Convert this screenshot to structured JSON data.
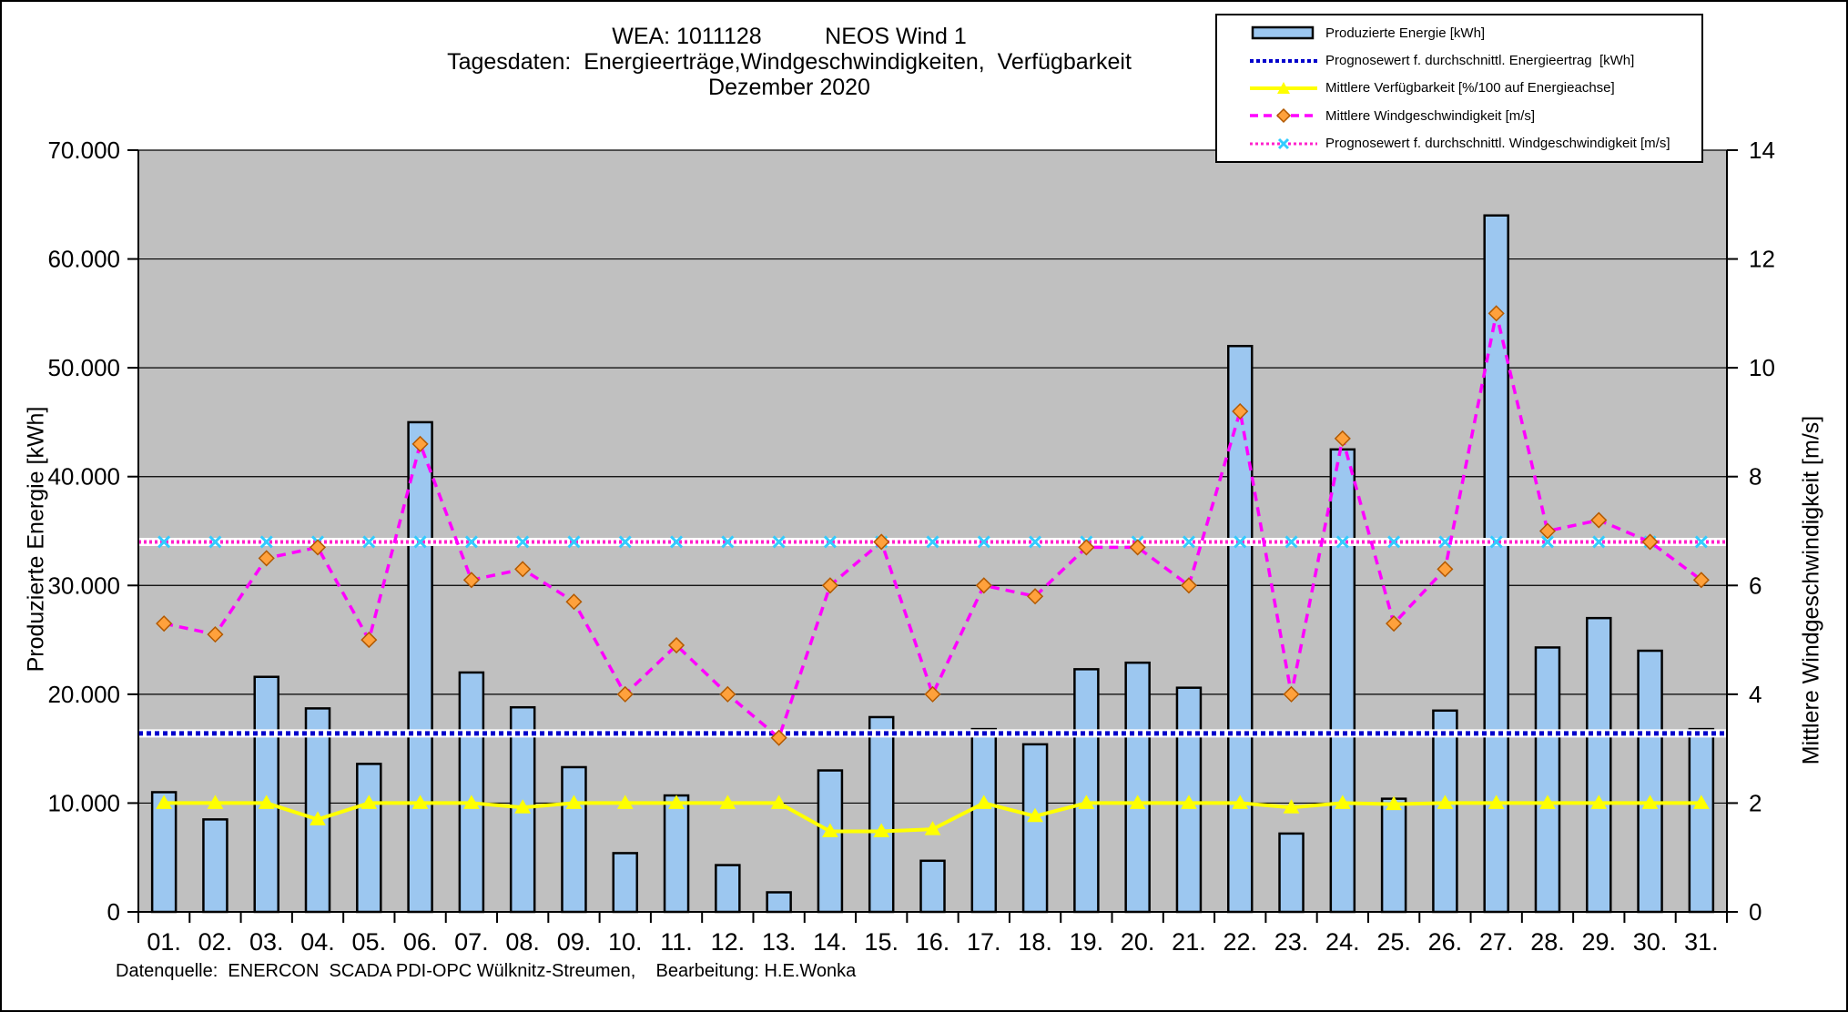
{
  "title": {
    "line1": "WEA: 1011128          NEOS Wind 1",
    "line2": "Tagesdaten:  Energieerträge,Windgeschwindigkeiten,  Verfügbarkeit",
    "line3": "Dezember 2020"
  },
  "footer": "Datenquelle:  ENERCON  SCADA PDI-OPC Wülknitz-Streumen,    Bearbeitung: H.E.Wonka",
  "legend": {
    "items": [
      {
        "label": "Produzierte Energie [kWh]",
        "type": "bar"
      },
      {
        "label": "Prognosewert f. durchschnittl. Energieertrag  [kWh]",
        "type": "dotted-blue"
      },
      {
        "label": "Mittlere Verfügbarkeit [%/100 auf Energieachse]",
        "type": "solid-yellow-triangle"
      },
      {
        "label": "Mittlere Windgeschwindigkeit [m/s]",
        "type": "dashed-magenta-diamond"
      },
      {
        "label": "Prognosewert f. durchschnittl. Windgeschwindigkeit [m/s]",
        "type": "dotted-magenta-x"
      }
    ]
  },
  "chart_data": {
    "type": "bar",
    "x_labels": [
      "01.",
      "02.",
      "03.",
      "04.",
      "05.",
      "06.",
      "07.",
      "08.",
      "09.",
      "10.",
      "11.",
      "12.",
      "13.",
      "14.",
      "15.",
      "16.",
      "17.",
      "18.",
      "19.",
      "20.",
      "21.",
      "22.",
      "23.",
      "24.",
      "25.",
      "26.",
      "27.",
      "28.",
      "29.",
      "30.",
      "31."
    ],
    "series": [
      {
        "name": "Produzierte Energie [kWh]",
        "type": "bar",
        "axis": "energy",
        "values": [
          11000,
          8500,
          21600,
          18700,
          13600,
          45000,
          22000,
          18800,
          13300,
          5400,
          10700,
          4300,
          1800,
          13000,
          17900,
          4700,
          16800,
          15400,
          22300,
          22900,
          20600,
          52000,
          7200,
          42500,
          10400,
          18500,
          64000,
          24300,
          27000,
          24000,
          16800
        ]
      },
      {
        "name": "Prognosewert f. durchschnittl. Energieertrag [kWh]",
        "type": "flatline",
        "axis": "energy",
        "value": 16400
      },
      {
        "name": "Mittlere Verfügbarkeit [%/100 auf Energieachse]",
        "type": "line",
        "axis": "energy",
        "scale_note": "%/100 plotted as value*10000 on energy axis",
        "values_pct": [
          1.0,
          1.0,
          1.0,
          0.85,
          1.0,
          1.0,
          1.0,
          0.96,
          1.0,
          1.0,
          1.0,
          1.0,
          1.0,
          0.74,
          0.74,
          0.76,
          1.0,
          0.88,
          1.0,
          1.0,
          1.0,
          1.0,
          0.96,
          1.0,
          0.99,
          1.0,
          1.0,
          1.0,
          1.0,
          1.0,
          1.0
        ]
      },
      {
        "name": "Mittlere Windgeschwindigkeit [m/s]",
        "type": "line",
        "axis": "wind",
        "values": [
          5.3,
          5.1,
          6.5,
          6.7,
          5.0,
          8.6,
          6.1,
          6.3,
          5.7,
          4.0,
          4.9,
          4.0,
          3.2,
          6.0,
          6.8,
          4.0,
          6.0,
          5.8,
          6.7,
          6.7,
          6.0,
          9.2,
          4.0,
          8.7,
          5.3,
          6.3,
          11.0,
          7.0,
          7.2,
          6.8,
          6.1
        ]
      },
      {
        "name": "Prognosewert f. durchschnittl. Windgeschwindigkeit [m/s]",
        "type": "flatline",
        "axis": "wind",
        "value": 6.8
      }
    ],
    "y_left": {
      "label": "Produzierte Energie [kWh]",
      "min": 0,
      "max": 70000,
      "step": 10000,
      "tick_labels": [
        "0",
        "10.000",
        "20.000",
        "30.000",
        "40.000",
        "50.000",
        "60.000",
        "70.000"
      ]
    },
    "y_right": {
      "label": "Mittlere Windgeschwindigkeit [m/s]",
      "min": 0,
      "max": 14,
      "step": 2,
      "tick_labels": [
        "0",
        "2",
        "4",
        "6",
        "8",
        "10",
        "12",
        "14"
      ]
    },
    "grid": "horizontal",
    "legend_position": "top-right",
    "colors": {
      "bar_fill": "#9CC7F0",
      "bar_border": "#000000",
      "plot_bg": "#C0C0C0",
      "gridline": "#000000",
      "availability_line": "#FFFF00",
      "wind_line": "#FF00FF",
      "wind_marker_fill": "#FFA13C",
      "wind_marker_border": "#B25900",
      "prognose_energy_line": "#0000CC",
      "prognose_wind_line": "#FF22CC",
      "prognose_wind_marker": "#33CCFF",
      "underlay": "#FFFFFF"
    }
  }
}
